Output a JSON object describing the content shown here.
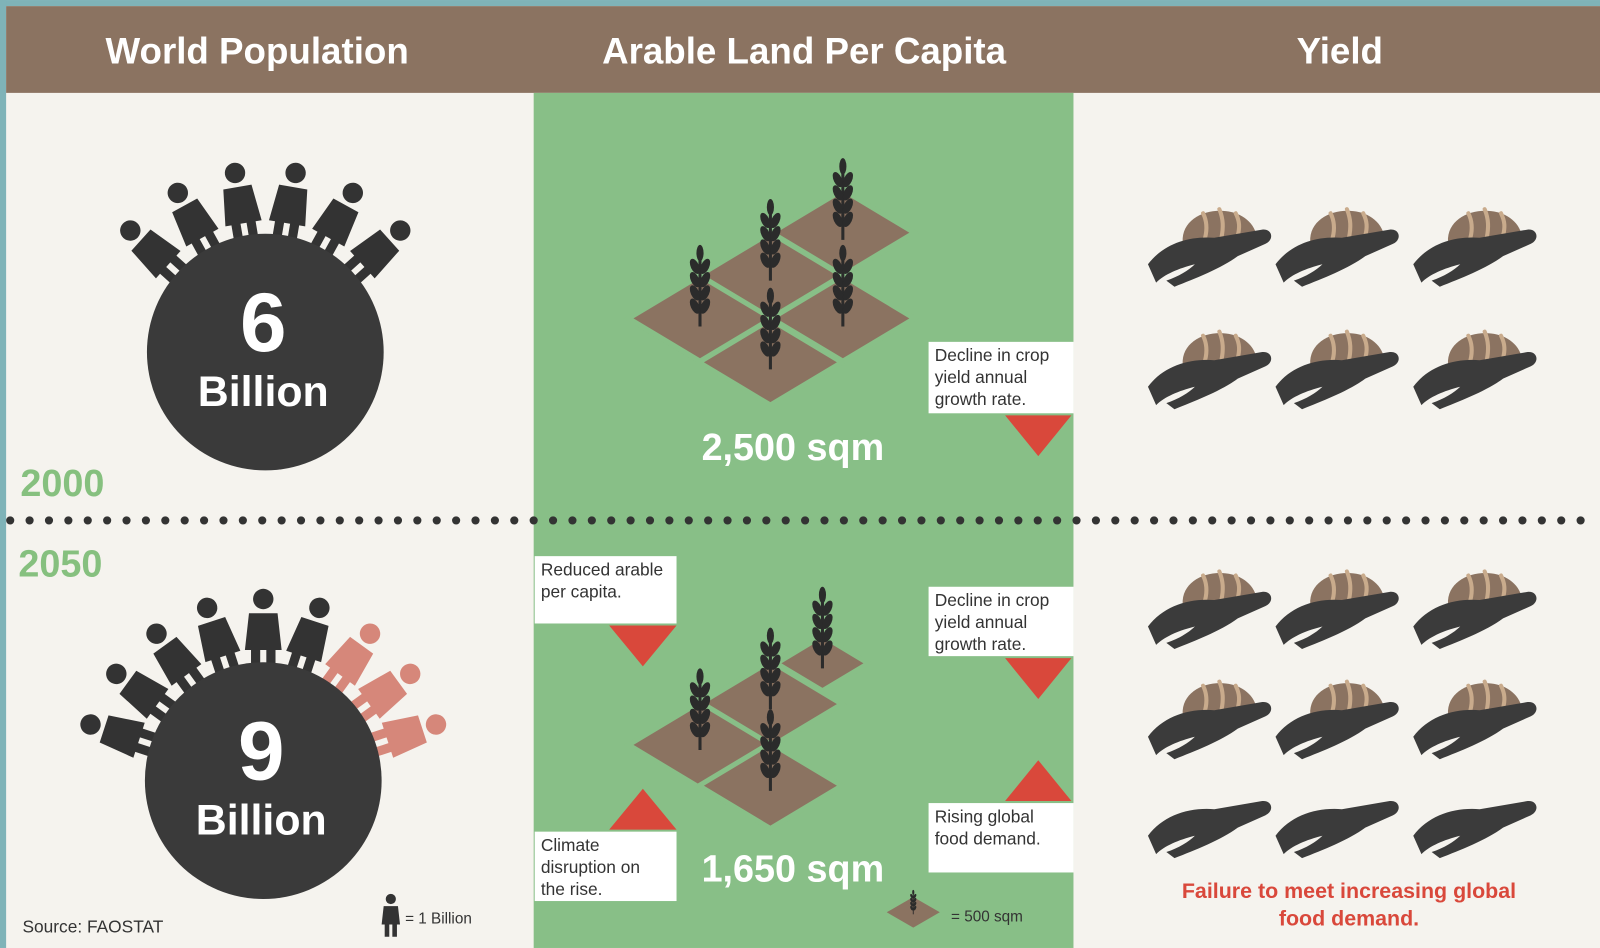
{
  "header": {
    "columns": [
      "World Population",
      "Arable Land Per Capita",
      "Yield"
    ]
  },
  "population": {
    "y2000": {
      "year": "2000",
      "number": "6",
      "unit": "Billion"
    },
    "y2050": {
      "year": "2050",
      "number": "9",
      "unit": "Billion"
    },
    "legend": "= 1 Billion",
    "source": "Source: FAOSTAT"
  },
  "land": {
    "area_2000": "2,500 sqm",
    "area_2050": "1,650 sqm",
    "legend": "= 500 sqm",
    "callouts": [
      {
        "lines": [
          "Decline in crop",
          "yield annual",
          "growth rate."
        ]
      },
      {
        "lines": [
          "Reduced arable",
          "per capita."
        ]
      },
      {
        "lines": [
          "Decline in crop",
          "yield annual",
          "growth rate."
        ]
      },
      {
        "lines": [
          "Climate",
          "disruption on",
          "the rise."
        ]
      },
      {
        "lines": [
          "Rising global",
          "food demand."
        ]
      }
    ]
  },
  "yield": {
    "note_lines": [
      "Failure to meet increasing global",
      "food demand."
    ]
  }
}
